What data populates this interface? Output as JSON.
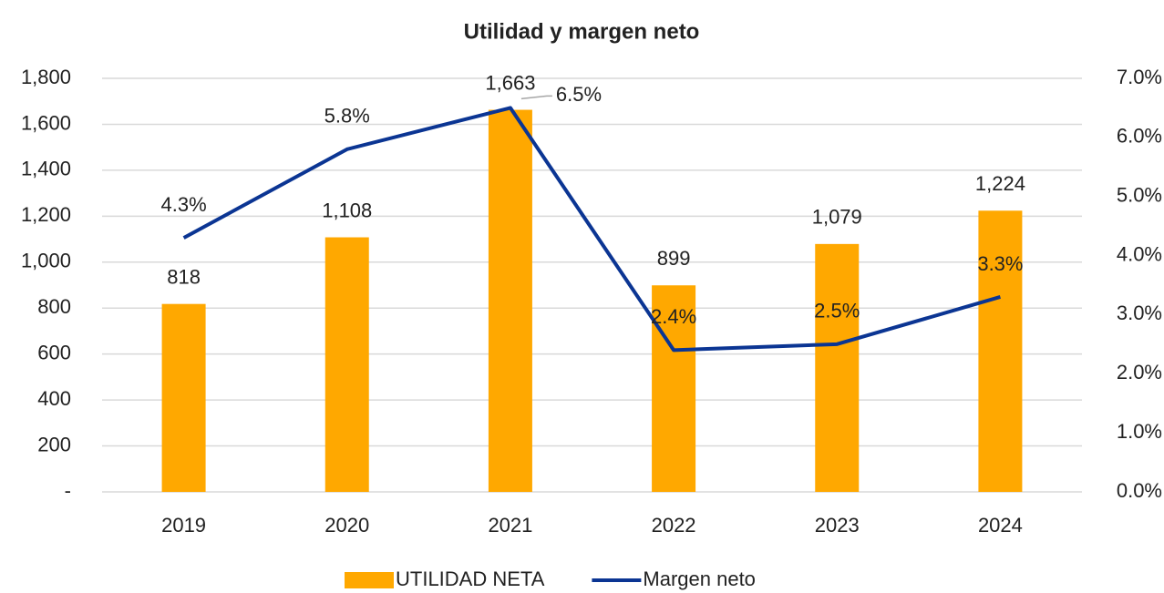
{
  "chart_data": {
    "type": "combo",
    "title": "Utilidad y margen neto",
    "categories": [
      "2019",
      "2020",
      "2021",
      "2022",
      "2023",
      "2024"
    ],
    "series": [
      {
        "name": "UTILIDAD NETA",
        "type": "bar",
        "color": "#ffa800",
        "values": [
          818,
          1108,
          1663,
          899,
          1079,
          1224
        ],
        "value_labels": [
          "818",
          "1,108",
          "1,663",
          "899",
          "1,079",
          "1,224"
        ]
      },
      {
        "name": "Margen neto",
        "type": "line",
        "axis": "y2",
        "color": "#0b3593",
        "values": [
          4.3,
          5.8,
          6.5,
          2.4,
          2.5,
          3.3
        ],
        "value_labels": [
          "4.3%",
          "5.8%",
          "6.5%",
          "2.4%",
          "2.5%",
          "3.3%"
        ]
      }
    ],
    "ylim": [
      0,
      1800
    ],
    "yticks": [
      {
        "value": 0,
        "label": "-"
      },
      200,
      400,
      600,
      800,
      {
        "value": 1000,
        "label": "1,000"
      },
      {
        "value": 1200,
        "label": "1,200"
      },
      {
        "value": 1400,
        "label": "1,400"
      },
      {
        "value": 1600,
        "label": "1,600"
      },
      {
        "value": 1800,
        "label": "1,800"
      }
    ],
    "y2lim": [
      0,
      7
    ],
    "y2ticks": [
      {
        "value": 0,
        "label": "0.0%"
      },
      {
        "value": 1,
        "label": "1.0%"
      },
      {
        "value": 2,
        "label": "2.0%"
      },
      {
        "value": 3,
        "label": "3.0%"
      },
      {
        "value": 4,
        "label": "4.0%"
      },
      {
        "value": 5,
        "label": "5.0%"
      },
      {
        "value": 6,
        "label": "6.0%"
      },
      {
        "value": 7,
        "label": "7.0%"
      }
    ],
    "grid": true,
    "legend": "bottom"
  }
}
